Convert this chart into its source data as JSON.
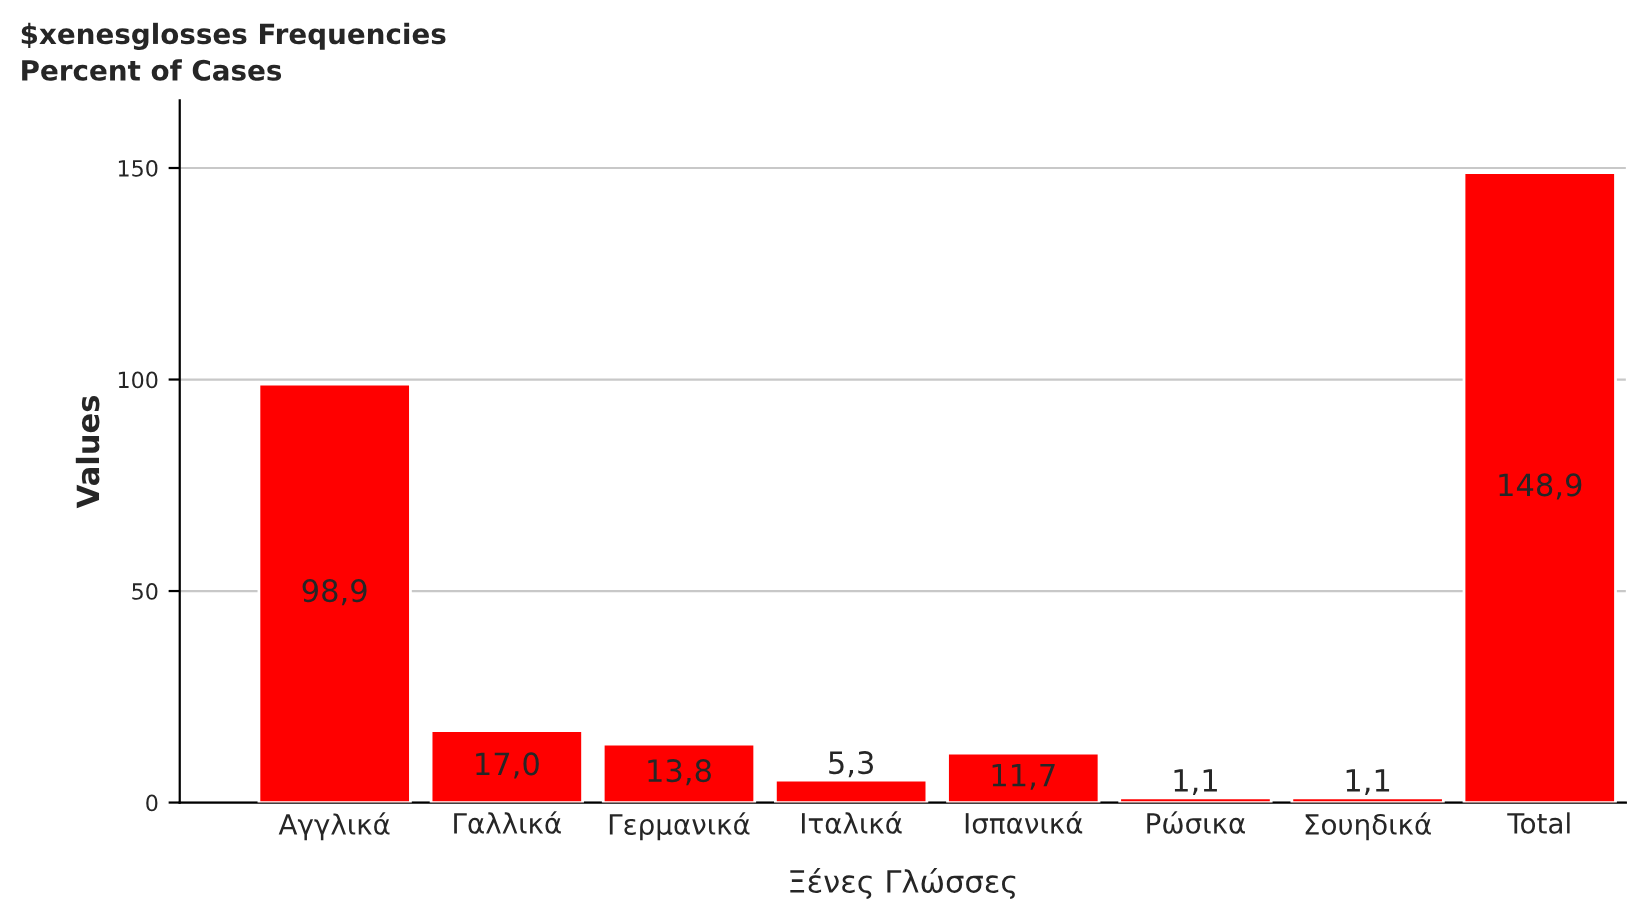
{
  "chart_data": {
    "type": "bar",
    "title": "$xenesglosses Frequencies",
    "subtitle": "Percent of Cases",
    "xlabel": "Ξένες Γλώσσες",
    "ylabel": "Values",
    "categories": [
      "Αγγλικά",
      "Γαλλικά",
      "Γερμανικά",
      "Ιταλικά",
      "Ισπανικά",
      "Ρώσικα",
      "Σουηδικά",
      "Total"
    ],
    "values": [
      98.9,
      17.0,
      13.8,
      5.3,
      11.7,
      1.1,
      1.1,
      148.9
    ],
    "value_labels": [
      "98,9",
      "17,0",
      "13,8",
      "5,3",
      "11,7",
      "1,1",
      "1,1",
      "148,9"
    ],
    "color": "#ff0000",
    "ylim": [
      0,
      166
    ],
    "yticks": [
      0,
      50,
      100,
      150
    ],
    "grid": "y"
  }
}
